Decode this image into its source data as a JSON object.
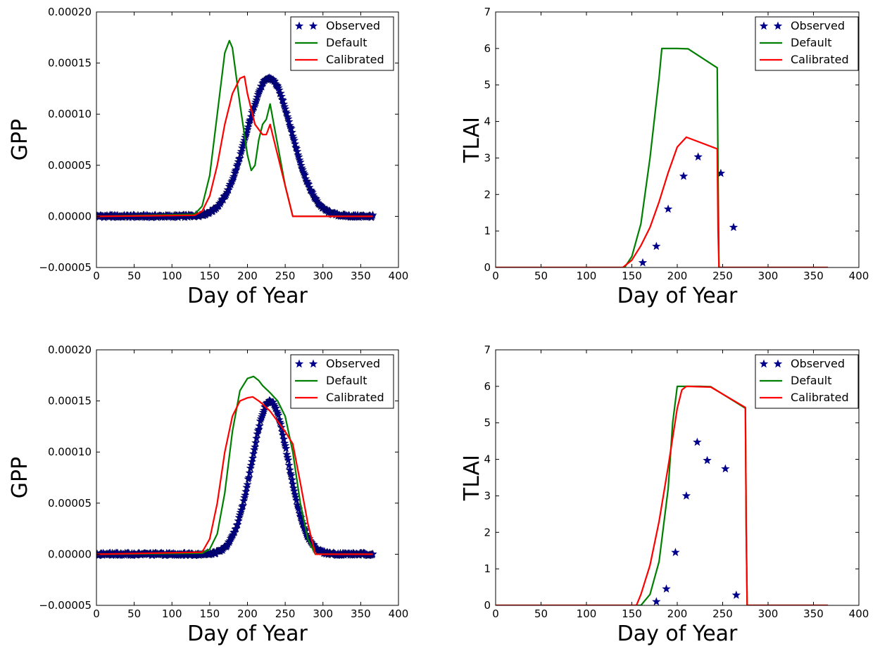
{
  "colors": {
    "observed": "#00008b",
    "default": "#008000",
    "calibrated": "#ff0000",
    "axis": "#000000"
  },
  "legend_labels": {
    "observed": "Observed",
    "default": "Default",
    "calibrated": "Calibrated"
  },
  "chart_data": [
    {
      "id": "gpp-top",
      "type": "line",
      "title": "",
      "xlabel": "Day of Year",
      "ylabel": "GPP",
      "xlim": [
        0,
        400
      ],
      "ylim": [
        -5e-05,
        0.0002
      ],
      "xticks": [
        "0",
        "50",
        "100",
        "150",
        "200",
        "250",
        "300",
        "350",
        "400"
      ],
      "yticks": [
        "−0.00005",
        "0.00000",
        "0.00005",
        "0.00010",
        "0.00015",
        "0.00020"
      ],
      "legend": "top-right",
      "grid": false,
      "observed_gaussian": {
        "peak_day": 229,
        "peak": 0.000135,
        "sigma": 30,
        "start_day": 1,
        "end_day": 366
      },
      "series": [
        {
          "name": "Default",
          "x": [
            0,
            130,
            140,
            150,
            160,
            170,
            176,
            180,
            190,
            200,
            205,
            210,
            215,
            220,
            225,
            230,
            235,
            240,
            250,
            260,
            270,
            366
          ],
          "values": [
            0,
            2e-06,
            1e-05,
            4e-05,
            0.0001,
            0.00016,
            0.000172,
            0.000165,
            0.00011,
            6e-05,
            4.5e-05,
            5e-05,
            7.5e-05,
            9e-05,
            9.5e-05,
            0.00011,
            9e-05,
            7e-05,
            3e-05,
            0,
            0,
            0
          ]
        },
        {
          "name": "Calibrated",
          "x": [
            0,
            130,
            140,
            150,
            160,
            170,
            180,
            190,
            196,
            200,
            210,
            220,
            225,
            230,
            235,
            240,
            250,
            260,
            270,
            366
          ],
          "values": [
            0,
            1e-06,
            5e-06,
            2e-05,
            5e-05,
            9e-05,
            0.00012,
            0.000135,
            0.000137,
            0.00012,
            9e-05,
            8e-05,
            8e-05,
            9e-05,
            7.5e-05,
            6e-05,
            3e-05,
            0,
            0,
            0
          ]
        }
      ]
    },
    {
      "id": "tlai-top",
      "type": "line",
      "title": "",
      "xlabel": "Day of Year",
      "ylabel": "TLAI",
      "xlim": [
        0,
        400
      ],
      "ylim": [
        0,
        7
      ],
      "xticks": [
        "0",
        "50",
        "100",
        "150",
        "200",
        "250",
        "300",
        "350",
        "400"
      ],
      "yticks": [
        "0",
        "1",
        "2",
        "3",
        "4",
        "5",
        "6",
        "7"
      ],
      "legend": "top-right",
      "grid": false,
      "observed_points": {
        "x": [
          162,
          177,
          190,
          207,
          223,
          248,
          262
        ],
        "values": [
          0.13,
          0.58,
          1.6,
          2.5,
          3.03,
          2.58,
          1.1
        ]
      },
      "series": [
        {
          "name": "Default",
          "x": [
            0,
            142,
            150,
            160,
            170,
            180,
            183,
            200,
            212,
            244,
            245,
            246,
            366
          ],
          "values": [
            0,
            0,
            0.3,
            1.2,
            3.0,
            5.2,
            6.0,
            6.0,
            5.99,
            5.47,
            2.5,
            0,
            0
          ]
        },
        {
          "name": "Calibrated",
          "x": [
            0,
            140,
            150,
            160,
            170,
            180,
            190,
            200,
            210,
            244,
            245,
            246,
            366
          ],
          "values": [
            0,
            0,
            0.2,
            0.6,
            1.1,
            1.8,
            2.6,
            3.3,
            3.57,
            3.25,
            1.0,
            0,
            0
          ]
        }
      ]
    },
    {
      "id": "gpp-bottom",
      "type": "line",
      "title": "",
      "xlabel": "Day of Year",
      "ylabel": "GPP",
      "xlim": [
        0,
        400
      ],
      "ylim": [
        -5e-05,
        0.0002
      ],
      "xticks": [
        "0",
        "50",
        "100",
        "150",
        "200",
        "250",
        "300",
        "350",
        "400"
      ],
      "yticks": [
        "−0.00005",
        "0.00000",
        "0.00005",
        "0.00010",
        "0.00015",
        "0.00020"
      ],
      "legend": "top-right",
      "grid": false,
      "observed_gaussian": {
        "peak_day": 230,
        "peak": 0.00015,
        "sigma": 24,
        "start_day": 1,
        "end_day": 366
      },
      "series": [
        {
          "name": "Default",
          "x": [
            0,
            140,
            150,
            160,
            170,
            180,
            190,
            200,
            208,
            215,
            220,
            230,
            240,
            250,
            260,
            270,
            280,
            290,
            366
          ],
          "values": [
            0,
            1e-06,
            5e-06,
            2e-05,
            6e-05,
            0.00012,
            0.00016,
            0.000172,
            0.000174,
            0.00017,
            0.000165,
            0.000158,
            0.00015,
            0.000135,
            0.0001,
            5e-05,
            1.5e-05,
            0,
            0
          ]
        },
        {
          "name": "Calibrated",
          "x": [
            0,
            140,
            150,
            160,
            170,
            180,
            190,
            200,
            207,
            215,
            220,
            230,
            240,
            250,
            260,
            270,
            280,
            290,
            366
          ],
          "values": [
            0,
            2e-06,
            1.5e-05,
            5e-05,
            0.0001,
            0.000135,
            0.00015,
            0.000153,
            0.000154,
            0.00015,
            0.000147,
            0.00014,
            0.00013,
            0.00012,
            0.000108,
            7e-05,
            3e-05,
            0,
            0
          ]
        }
      ]
    },
    {
      "id": "tlai-bottom",
      "type": "line",
      "title": "",
      "xlabel": "Day of Year",
      "ylabel": "TLAI",
      "xlim": [
        0,
        400
      ],
      "ylim": [
        0,
        7
      ],
      "xticks": [
        "0",
        "50",
        "100",
        "150",
        "200",
        "250",
        "300",
        "350",
        "400"
      ],
      "yticks": [
        "0",
        "1",
        "2",
        "3",
        "4",
        "5",
        "6",
        "7"
      ],
      "legend": "top-right",
      "grid": false,
      "observed_points": {
        "x": [
          177,
          188,
          198,
          210,
          222,
          233,
          253,
          265
        ],
        "values": [
          0.1,
          0.45,
          1.45,
          3.0,
          4.47,
          3.97,
          3.74,
          0.28
        ]
      },
      "series": [
        {
          "name": "Default",
          "x": [
            0,
            160,
            170,
            180,
            190,
            195,
            200,
            225,
            237,
            275,
            276,
            277,
            366
          ],
          "values": [
            0,
            0,
            0.3,
            1.2,
            3.2,
            5.0,
            6.0,
            6.0,
            5.99,
            5.4,
            2.0,
            0,
            0
          ]
        },
        {
          "name": "Calibrated",
          "x": [
            0,
            155,
            160,
            170,
            180,
            190,
            200,
            205,
            210,
            237,
            275,
            276,
            277,
            366
          ],
          "values": [
            0,
            0,
            0.3,
            1.1,
            2.3,
            3.8,
            5.4,
            5.9,
            6.0,
            5.98,
            5.42,
            2.0,
            0,
            0
          ]
        }
      ]
    }
  ]
}
